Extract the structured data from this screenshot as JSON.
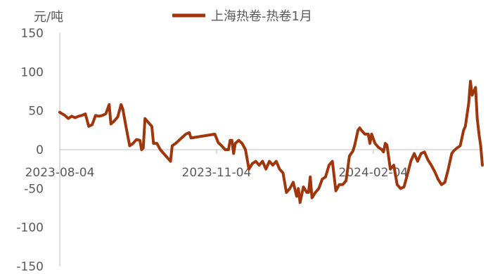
{
  "chart_data": {
    "type": "line",
    "unit_label": "元/吨",
    "ylim": [
      -150,
      150
    ],
    "yticks": [
      150,
      100,
      50,
      0,
      -50,
      -100,
      -150
    ],
    "x_tick_labels": [
      "2023-08-04",
      "2023-11-04",
      "2024-02-04"
    ],
    "x_range": [
      "2023-08-04",
      "2024-04-08"
    ],
    "legend_position": "top-center",
    "grid": false,
    "series": [
      {
        "name": "上海热卷-热卷1月",
        "color": "#A0360C",
        "points": [
          [
            "2023-08-04",
            48
          ],
          [
            "2023-08-07",
            44
          ],
          [
            "2023-08-09",
            40
          ],
          [
            "2023-08-11",
            43
          ],
          [
            "2023-08-13",
            41
          ],
          [
            "2023-08-15",
            43
          ],
          [
            "2023-08-17",
            44
          ],
          [
            "2023-08-19",
            46
          ],
          [
            "2023-08-21",
            30
          ],
          [
            "2023-08-23",
            32
          ],
          [
            "2023-08-25",
            44
          ],
          [
            "2023-08-27",
            43
          ],
          [
            "2023-08-29",
            44
          ],
          [
            "2023-08-31",
            46
          ],
          [
            "2023-09-02",
            58
          ],
          [
            "2023-09-03",
            33
          ],
          [
            "2023-09-05",
            37
          ],
          [
            "2023-09-07",
            42
          ],
          [
            "2023-09-09",
            58
          ],
          [
            "2023-09-10",
            52
          ],
          [
            "2023-09-12",
            28
          ],
          [
            "2023-09-14",
            5
          ],
          [
            "2023-09-16",
            8
          ],
          [
            "2023-09-18",
            13
          ],
          [
            "2023-09-20",
            12
          ],
          [
            "2023-09-21",
            0
          ],
          [
            "2023-09-22",
            2
          ],
          [
            "2023-09-23",
            40
          ],
          [
            "2023-09-25",
            35
          ],
          [
            "2023-09-27",
            30
          ],
          [
            "2023-09-28",
            8
          ],
          [
            "2023-09-30",
            8
          ],
          [
            "2023-10-02",
            0
          ],
          [
            "2023-10-04",
            -5
          ],
          [
            "2023-10-06",
            -10
          ],
          [
            "2023-10-08",
            -15
          ],
          [
            "2023-10-09",
            5
          ],
          [
            "2023-10-11",
            8
          ],
          [
            "2023-10-13",
            12
          ],
          [
            "2023-10-15",
            16
          ],
          [
            "2023-10-17",
            20
          ],
          [
            "2023-10-19",
            22
          ],
          [
            "2023-10-20",
            15
          ],
          [
            "2023-11-03",
            20
          ],
          [
            "2023-11-05",
            9
          ],
          [
            "2023-11-07",
            5
          ],
          [
            "2023-11-09",
            0
          ],
          [
            "2023-11-11",
            0
          ],
          [
            "2023-11-12",
            12
          ],
          [
            "2023-11-13",
            12
          ],
          [
            "2023-11-14",
            -5
          ],
          [
            "2023-11-15",
            8
          ],
          [
            "2023-11-17",
            12
          ],
          [
            "2023-11-19",
            8
          ],
          [
            "2023-11-21",
            0
          ],
          [
            "2023-11-23",
            -25
          ],
          [
            "2023-11-25",
            -18
          ],
          [
            "2023-11-27",
            -15
          ],
          [
            "2023-11-29",
            -20
          ],
          [
            "2023-12-01",
            -15
          ],
          [
            "2023-12-03",
            -25
          ],
          [
            "2023-12-05",
            -15
          ],
          [
            "2023-12-07",
            -20
          ],
          [
            "2023-12-09",
            -15
          ],
          [
            "2023-12-11",
            -25
          ],
          [
            "2023-12-13",
            -30
          ],
          [
            "2023-12-15",
            -55
          ],
          [
            "2023-12-17",
            -50
          ],
          [
            "2023-12-19",
            -42
          ],
          [
            "2023-12-21",
            -60
          ],
          [
            "2023-12-22",
            -50
          ],
          [
            "2023-12-23",
            -68
          ],
          [
            "2023-12-25",
            -48
          ],
          [
            "2023-12-27",
            -55
          ],
          [
            "2023-12-28",
            -55
          ],
          [
            "2023-12-29",
            -35
          ],
          [
            "2023-12-30",
            -62
          ],
          [
            "2024-01-01",
            -55
          ],
          [
            "2024-01-03",
            -50
          ],
          [
            "2024-01-05",
            -38
          ],
          [
            "2024-01-07",
            -35
          ],
          [
            "2024-01-09",
            -20
          ],
          [
            "2024-01-11",
            -15
          ],
          [
            "2024-01-13",
            -53
          ],
          [
            "2024-01-15",
            -45
          ],
          [
            "2024-01-17",
            -45
          ],
          [
            "2024-01-19",
            -40
          ],
          [
            "2024-01-21",
            -8
          ],
          [
            "2024-01-23",
            -2
          ],
          [
            "2024-01-24",
            5
          ],
          [
            "2024-01-25",
            15
          ],
          [
            "2024-01-26",
            25
          ],
          [
            "2024-01-27",
            28
          ],
          [
            "2024-01-28",
            25
          ],
          [
            "2024-01-30",
            20
          ],
          [
            "2024-02-01",
            20
          ],
          [
            "2024-02-02",
            8
          ],
          [
            "2024-02-03",
            20
          ],
          [
            "2024-02-05",
            8
          ],
          [
            "2024-02-07",
            3
          ],
          [
            "2024-02-09",
            0
          ],
          [
            "2024-02-10",
            -3
          ],
          [
            "2024-02-11",
            8
          ],
          [
            "2024-02-12",
            6
          ],
          [
            "2024-02-14",
            -25
          ],
          [
            "2024-02-16",
            -20
          ],
          [
            "2024-02-18",
            -45
          ],
          [
            "2024-02-20",
            -50
          ],
          [
            "2024-02-22",
            -48
          ],
          [
            "2024-02-24",
            -32
          ],
          [
            "2024-02-26",
            -15
          ],
          [
            "2024-02-28",
            -5
          ],
          [
            "2024-03-01",
            -15
          ],
          [
            "2024-03-03",
            -5
          ],
          [
            "2024-03-05",
            -3
          ],
          [
            "2024-03-07",
            -13
          ],
          [
            "2024-03-09",
            -20
          ],
          [
            "2024-03-11",
            -28
          ],
          [
            "2024-03-13",
            -38
          ],
          [
            "2024-03-15",
            -45
          ],
          [
            "2024-03-17",
            -42
          ],
          [
            "2024-03-19",
            -25
          ],
          [
            "2024-03-20",
            -15
          ],
          [
            "2024-03-21",
            -5
          ],
          [
            "2024-03-22",
            -2
          ],
          [
            "2024-03-24",
            2
          ],
          [
            "2024-03-26",
            5
          ],
          [
            "2024-03-27",
            15
          ],
          [
            "2024-03-28",
            25
          ],
          [
            "2024-03-29",
            30
          ],
          [
            "2024-03-30",
            45
          ],
          [
            "2024-03-31",
            60
          ],
          [
            "2024-04-01",
            88
          ],
          [
            "2024-04-02",
            70
          ],
          [
            "2024-04-03",
            75
          ],
          [
            "2024-04-04",
            80
          ],
          [
            "2024-04-05",
            40
          ],
          [
            "2024-04-06",
            20
          ],
          [
            "2024-04-07",
            5
          ],
          [
            "2024-04-08",
            -20
          ]
        ]
      }
    ]
  }
}
